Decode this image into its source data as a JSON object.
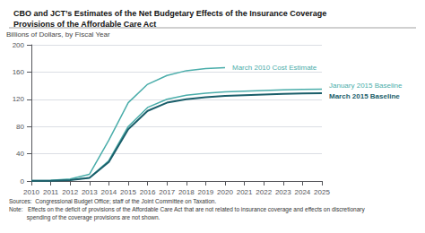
{
  "chart_data": {
    "type": "line",
    "title": "CBO and JCT’s Estimates of the Net Budgetary Effects of the Insurance Coverage\nProvisions of the Affordable Care Act",
    "ylabel": "Billions of Dollars, by Fiscal Year",
    "annotations": [
      "Sources:  Congressional Budget Office; staff of the Joint Committee on Taxation.",
      "Note:   Effects on the deficit of provisions of the Affordable Care Act that are not related to insurance coverage and effects on discretionary",
      "           spending of the coverage provisions are not shown."
    ],
    "xlim": [
      2010,
      2025
    ],
    "xticks": [
      2010,
      2011,
      2012,
      2013,
      2014,
      2015,
      2016,
      2017,
      2018,
      2019,
      2020,
      2021,
      2022,
      2023,
      2024,
      2025
    ],
    "ylim": [
      0,
      200
    ],
    "yticks": [
      0,
      40,
      80,
      120,
      160,
      200
    ],
    "grid": true,
    "series": [
      {
        "name": "March 2010 Cost Estimate",
        "color": "#4aadaa",
        "x": [
          2010,
          2011,
          2012,
          2013,
          2014,
          2015,
          2016,
          2017,
          2018,
          2019,
          2020
        ],
        "values": [
          0.5,
          1.0,
          3.0,
          10.0,
          60.0,
          115.0,
          142.0,
          155.0,
          162.0,
          165.0,
          166.5
        ]
      },
      {
        "name": "January 2015 Baseline",
        "color": "#4aadaa",
        "x": [
          2010,
          2011,
          2012,
          2013,
          2014,
          2015,
          2016,
          2017,
          2018,
          2019,
          2020,
          2021,
          2022,
          2023,
          2024,
          2025
        ],
        "values": [
          0.3,
          0.5,
          1.5,
          5.0,
          30.0,
          80.0,
          108.0,
          120.0,
          126.0,
          129.0,
          131.0,
          132.0,
          133.0,
          134.0,
          134.5,
          135.0
        ]
      },
      {
        "name": "March 2015 Baseline",
        "color": "#1a5e6a",
        "x": [
          2010,
          2011,
          2012,
          2013,
          2014,
          2015,
          2016,
          2017,
          2018,
          2019,
          2020,
          2021,
          2022,
          2023,
          2024,
          2025
        ],
        "values": [
          0.2,
          0.4,
          1.2,
          4.5,
          28.0,
          76.0,
          103.0,
          115.0,
          120.0,
          123.0,
          125.0,
          126.0,
          127.0,
          128.0,
          128.5,
          129.0
        ]
      }
    ]
  }
}
